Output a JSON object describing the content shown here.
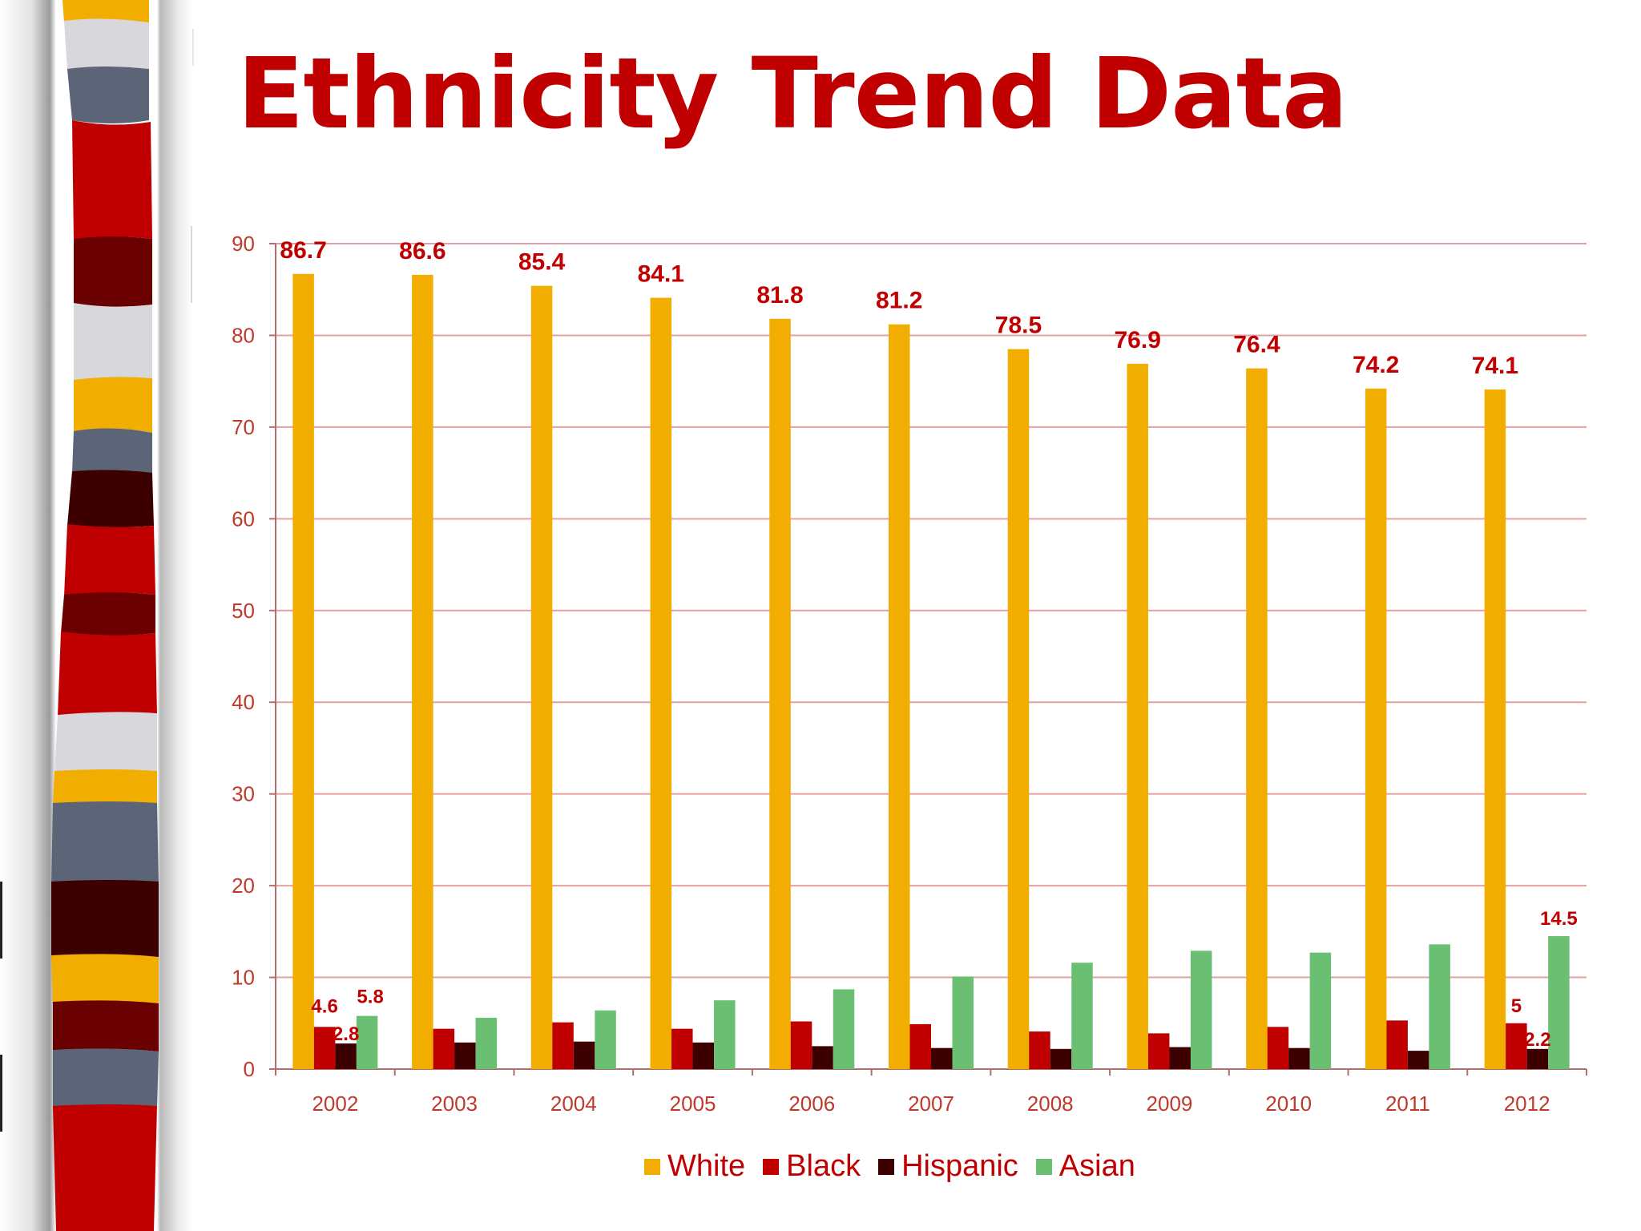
{
  "slide": {
    "title": "Ethnicity Trend Data"
  },
  "colors": {
    "title": "#c00000",
    "label": "#c00000",
    "grid": "#e3a0a0",
    "axis_text": "#c0392b",
    "White": "#f2ae00",
    "Black": "#c00000",
    "Hispanic": "#3d0000",
    "Asian": "#6bbf73"
  },
  "chart_data": {
    "type": "bar",
    "title": "",
    "xlabel": "",
    "ylabel": "",
    "ylim": [
      0,
      90
    ],
    "yticks": [
      0,
      10,
      20,
      30,
      40,
      50,
      60,
      70,
      80,
      90
    ],
    "grid": true,
    "legend_position": "bottom",
    "categories": [
      "2002",
      "2003",
      "2004",
      "2005",
      "2006",
      "2007",
      "2008",
      "2009",
      "2010",
      "2011",
      "2012"
    ],
    "series": [
      {
        "name": "White",
        "values": [
          86.7,
          86.6,
          85.4,
          84.1,
          81.8,
          81.2,
          78.5,
          76.9,
          76.4,
          74.2,
          74.1
        ]
      },
      {
        "name": "Black",
        "values": [
          4.6,
          4.4,
          5.1,
          4.4,
          5.2,
          4.9,
          4.1,
          3.9,
          4.6,
          5.3,
          5
        ]
      },
      {
        "name": "Hispanic",
        "values": [
          2.8,
          2.9,
          3.0,
          2.9,
          2.5,
          2.3,
          2.2,
          2.4,
          2.3,
          2.0,
          2.2
        ]
      },
      {
        "name": "Asian",
        "values": [
          5.8,
          5.6,
          6.4,
          7.5,
          8.7,
          10.1,
          11.6,
          12.9,
          12.7,
          13.6,
          14.5
        ]
      }
    ],
    "data_labels": [
      {
        "series": "White",
        "category": "2002",
        "text": "86.7"
      },
      {
        "series": "White",
        "category": "2003",
        "text": "86.6"
      },
      {
        "series": "White",
        "category": "2004",
        "text": "85.4"
      },
      {
        "series": "White",
        "category": "2005",
        "text": "84.1"
      },
      {
        "series": "White",
        "category": "2006",
        "text": "81.8"
      },
      {
        "series": "White",
        "category": "2007",
        "text": "81.2"
      },
      {
        "series": "White",
        "category": "2008",
        "text": "78.5"
      },
      {
        "series": "White",
        "category": "2009",
        "text": "76.9"
      },
      {
        "series": "White",
        "category": "2010",
        "text": "76.4"
      },
      {
        "series": "White",
        "category": "2011",
        "text": "74.2"
      },
      {
        "series": "White",
        "category": "2012",
        "text": "74.1"
      },
      {
        "series": "Black",
        "category": "2002",
        "text": "4.6"
      },
      {
        "series": "Hispanic",
        "category": "2002",
        "text": "2.8"
      },
      {
        "series": "Asian",
        "category": "2002",
        "text": "5.8"
      },
      {
        "series": "Black",
        "category": "2012",
        "text": "5"
      },
      {
        "series": "Hispanic",
        "category": "2012",
        "text": "2.2"
      },
      {
        "series": "Asian",
        "category": "2012",
        "text": "14.5"
      }
    ]
  }
}
